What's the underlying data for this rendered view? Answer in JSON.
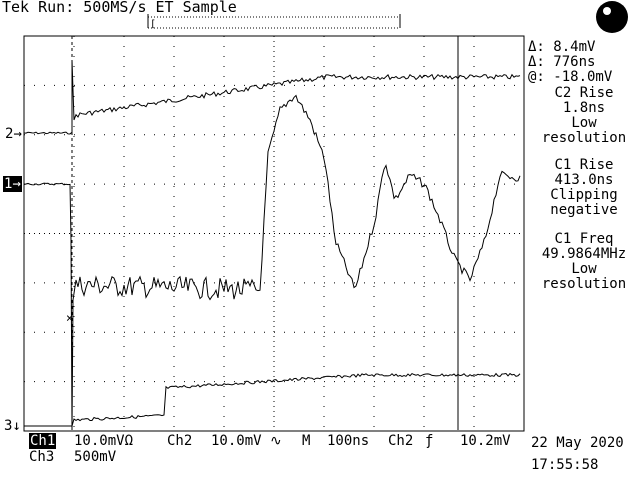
{
  "header": {
    "status": "Tek Run: 500MS/s ET Sample"
  },
  "markers": {
    "ch2": "2",
    "ch1": "1",
    "ch3": "3"
  },
  "cursor_readout": {
    "delta_v": "Δ: 8.4mV",
    "delta_t": "Δ: 776ns",
    "at": "@: -18.0mV"
  },
  "measurements": [
    {
      "title": "C2 Rise",
      "value": "1.8ns",
      "note1": "Low",
      "note2": "resolution"
    },
    {
      "title": "C1 Rise",
      "value": "413.0ns",
      "note1": "Clipping",
      "note2": "negative"
    },
    {
      "title": "C1 Freq",
      "value": "49.9864MHz",
      "note1": "Low",
      "note2": "resolution"
    }
  ],
  "footer": {
    "ch1_label": "Ch1",
    "ch1_scale": "10.0mVΩ",
    "ch2_label": "Ch2",
    "ch2_scale": "10.0mV",
    "ch2_coupling": "∿",
    "timebase_label": "M",
    "timebase": "100ns",
    "trig_source": "Ch2",
    "trig_slope": "ƒ",
    "trig_level": "10.2mV",
    "ch3_label": "Ch3",
    "ch3_scale": "500mV",
    "date": "22 May 2020",
    "time": "17:55:58"
  },
  "colors": {
    "background": "#ffffff",
    "trace": "#000000"
  },
  "icons": {
    "acquisition": "run-indicator-dot-icon",
    "trigger_position": "trigger-position-icon"
  }
}
